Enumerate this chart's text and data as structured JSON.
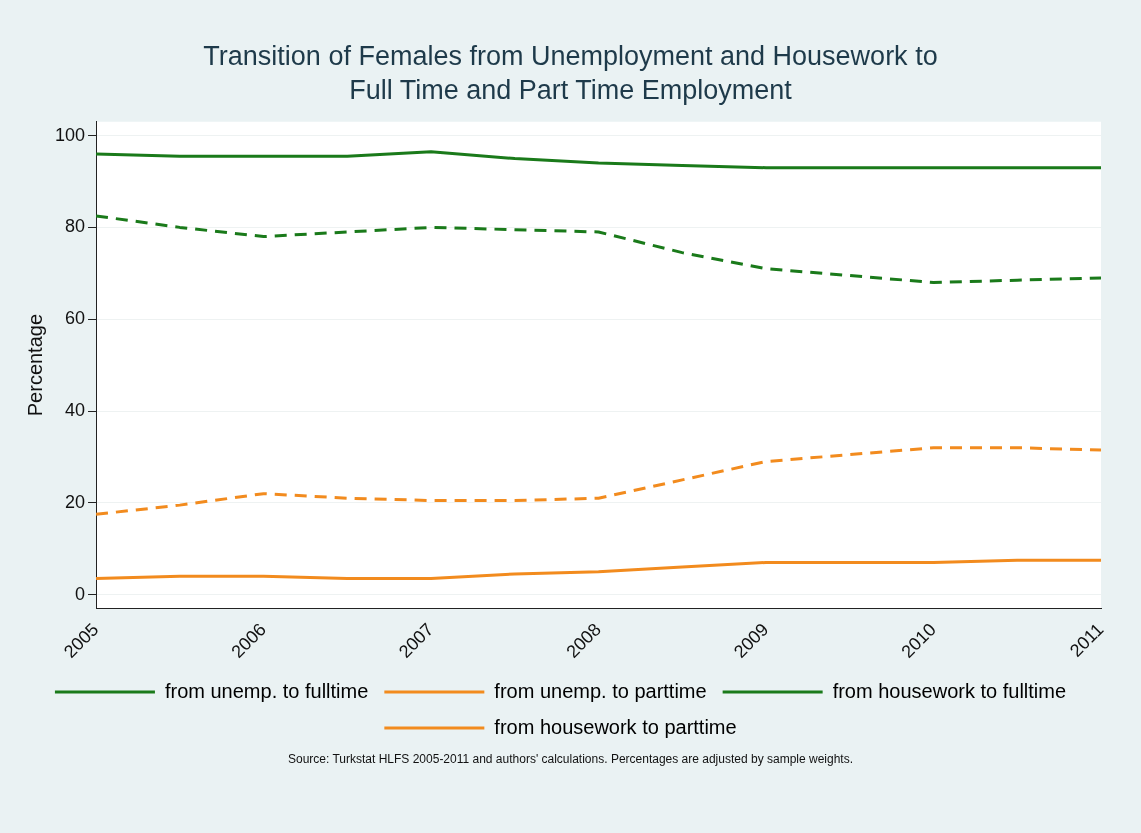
{
  "chart_data": {
    "type": "line",
    "title": "Transition of Females from Unemployment and Housework to Full Time and Part Time Employment",
    "ylabel": "Percentage",
    "x": [
      2005,
      2005.5,
      2006,
      2006.5,
      2007,
      2007.5,
      2008,
      2008.5,
      2009,
      2009.5,
      2010,
      2010.5,
      2011
    ],
    "xlim": [
      2005,
      2011
    ],
    "xticks": [
      2005,
      2006,
      2007,
      2008,
      2009,
      2010,
      2011
    ],
    "ylim": [
      -3,
      103
    ],
    "yticks": [
      0,
      20,
      40,
      60,
      80,
      100
    ],
    "series": [
      {
        "name": "from unemp. to fulltime",
        "color": "#1a7a1a",
        "line_style": "solid",
        "values": [
          96,
          95.5,
          95.5,
          95.5,
          96.5,
          95,
          94,
          93.5,
          93,
          93,
          93,
          93,
          93
        ]
      },
      {
        "name": "from unemp. to parttime",
        "color": "#f28b1e",
        "line_style": "solid",
        "values": [
          3.5,
          4,
          4,
          3.5,
          3.5,
          4.5,
          5,
          6,
          7,
          7,
          7,
          7.5,
          7.5
        ]
      },
      {
        "name": "from housework to fulltime",
        "color": "#1a7a1a",
        "line_style": "dashed",
        "values": [
          82.5,
          80,
          78,
          79,
          80,
          79.5,
          79,
          74.5,
          71,
          69.5,
          68,
          68.5,
          69
        ]
      },
      {
        "name": "from housework to parttime",
        "color": "#f28b1e",
        "line_style": "dashed",
        "values": [
          17.5,
          19.5,
          22,
          21,
          20.5,
          20.5,
          21,
          25,
          29,
          30.5,
          32,
          32,
          31.5
        ]
      }
    ],
    "grid": "y",
    "legend": "bottom",
    "marker": "none",
    "annotations": [
      "Source: Turkstat HLFS 2005-2011 and authors' calculations. Percentages are adjusted by sample weights."
    ]
  }
}
